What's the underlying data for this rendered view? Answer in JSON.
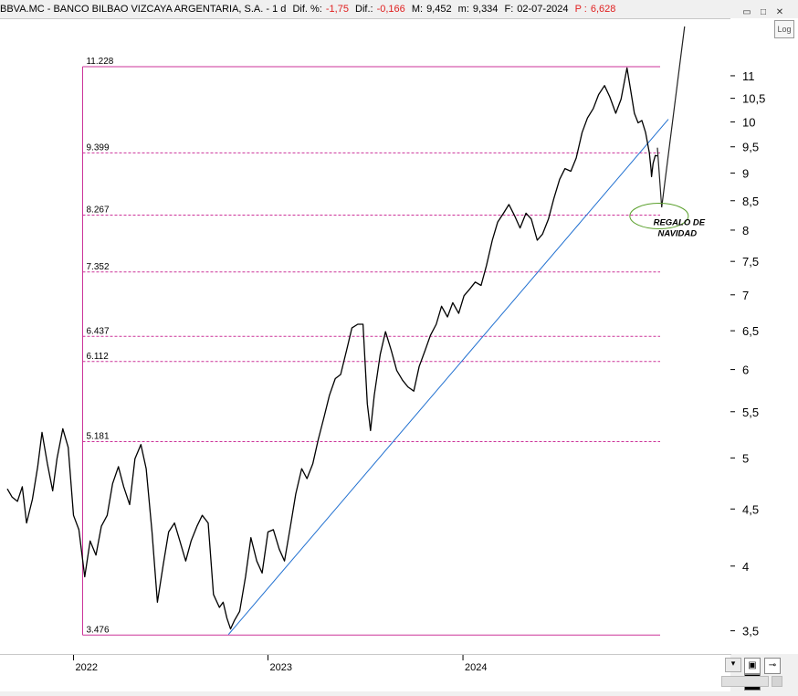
{
  "header": {
    "symbol": "BBVA.MC - BANCO BILBAO VIZCAYA ARGENTARIA, S.A. - 1 d",
    "dif_pct_label": "Dif. %:",
    "dif_pct_value": "-1,75",
    "dif_label": "Dif.:",
    "dif_value": "-0,166",
    "max_label": "M:",
    "max_value": "9,452",
    "min_label": "m:",
    "min_value": "9,334",
    "date_label": "F:",
    "date_value": "02-07-2024",
    "price_label": "P :",
    "price_value": "6,628"
  },
  "window_buttons": [
    "▭",
    "□",
    "✕"
  ],
  "log_button": "Log",
  "colors": {
    "price": "#000000",
    "fib": "#cc3399",
    "trendline": "#1f6fd0",
    "ellipse": "#5aa02c",
    "negative": "#e02020"
  },
  "chart_data": {
    "type": "line",
    "scale": "log",
    "ylim": [
      3.4,
      12.2
    ],
    "y_ticks": [
      "3,5",
      "4",
      "4,5",
      "5",
      "5,5",
      "6",
      "6,5",
      "7",
      "7,5",
      "8",
      "8,5",
      "9",
      "9,5",
      "10",
      "10,5",
      "11"
    ],
    "y_tick_values": [
      3.5,
      4,
      4.5,
      5,
      5.5,
      6,
      6.5,
      7,
      7.5,
      8,
      8.5,
      9,
      9.5,
      10,
      10.5,
      11
    ],
    "x_ticks": [
      "2022",
      "2023",
      "2024"
    ],
    "x_tick_dates": [
      "2022-01-03",
      "2023-01-02",
      "2024-01-02"
    ],
    "xlim": [
      "2021-09-01",
      "2024-12-31"
    ],
    "fib_levels": [
      {
        "label": "11.228",
        "value": 11.228
      },
      {
        "label": "9.399",
        "value": 9.399
      },
      {
        "label": "8.267",
        "value": 8.267
      },
      {
        "label": "7.352",
        "value": 7.352
      },
      {
        "label": "6.437",
        "value": 6.437
      },
      {
        "label": "6.112",
        "value": 6.112
      },
      {
        "label": "5.181",
        "value": 5.181
      },
      {
        "label": "3.476",
        "value": 3.476
      }
    ],
    "series": [
      {
        "values": [
          [
            "2021-09-01",
            4.7
          ],
          [
            "2021-09-10",
            4.62
          ],
          [
            "2021-09-20",
            4.58
          ],
          [
            "2021-09-29",
            4.72
          ],
          [
            "2021-10-07",
            4.38
          ],
          [
            "2021-10-18",
            4.6
          ],
          [
            "2021-10-28",
            4.92
          ],
          [
            "2021-11-05",
            5.28
          ],
          [
            "2021-11-15",
            4.95
          ],
          [
            "2021-11-25",
            4.68
          ],
          [
            "2021-12-03",
            5.0
          ],
          [
            "2021-12-14",
            5.32
          ],
          [
            "2021-12-24",
            5.12
          ],
          [
            "2022-01-03",
            4.45
          ],
          [
            "2022-01-13",
            4.32
          ],
          [
            "2022-01-24",
            3.92
          ],
          [
            "2022-02-03",
            4.22
          ],
          [
            "2022-02-14",
            4.1
          ],
          [
            "2022-02-24",
            4.35
          ],
          [
            "2022-03-07",
            4.45
          ],
          [
            "2022-03-17",
            4.75
          ],
          [
            "2022-03-28",
            4.92
          ],
          [
            "2022-04-07",
            4.72
          ],
          [
            "2022-04-18",
            4.55
          ],
          [
            "2022-04-28",
            5.0
          ],
          [
            "2022-05-09",
            5.15
          ],
          [
            "2022-05-19",
            4.9
          ],
          [
            "2022-05-30",
            4.3
          ],
          [
            "2022-06-09",
            3.72
          ],
          [
            "2022-06-20",
            4.02
          ],
          [
            "2022-06-30",
            4.3
          ],
          [
            "2022-07-11",
            4.38
          ],
          [
            "2022-07-21",
            4.22
          ],
          [
            "2022-08-01",
            4.05
          ],
          [
            "2022-08-11",
            4.22
          ],
          [
            "2022-08-22",
            4.35
          ],
          [
            "2022-09-01",
            4.45
          ],
          [
            "2022-09-12",
            4.38
          ],
          [
            "2022-09-22",
            3.78
          ],
          [
            "2022-10-03",
            3.68
          ],
          [
            "2022-10-10",
            3.72
          ],
          [
            "2022-10-17",
            3.6
          ],
          [
            "2022-10-24",
            3.52
          ],
          [
            "2022-10-31",
            3.58
          ],
          [
            "2022-11-10",
            3.65
          ],
          [
            "2022-11-21",
            3.92
          ],
          [
            "2022-12-01",
            4.25
          ],
          [
            "2022-12-12",
            4.05
          ],
          [
            "2022-12-22",
            3.95
          ],
          [
            "2023-01-02",
            4.3
          ],
          [
            "2023-01-12",
            4.32
          ],
          [
            "2023-01-23",
            4.15
          ],
          [
            "2023-02-02",
            4.05
          ],
          [
            "2023-02-13",
            4.35
          ],
          [
            "2023-02-23",
            4.65
          ],
          [
            "2023-03-06",
            4.9
          ],
          [
            "2023-03-16",
            4.8
          ],
          [
            "2023-03-27",
            4.95
          ],
          [
            "2023-04-06",
            5.2
          ],
          [
            "2023-04-17",
            5.45
          ],
          [
            "2023-04-27",
            5.7
          ],
          [
            "2023-05-08",
            5.9
          ],
          [
            "2023-05-18",
            5.95
          ],
          [
            "2023-05-29",
            6.25
          ],
          [
            "2023-06-08",
            6.55
          ],
          [
            "2023-06-19",
            6.6
          ],
          [
            "2023-06-29",
            6.6
          ],
          [
            "2023-07-07",
            5.6
          ],
          [
            "2023-07-13",
            5.3
          ],
          [
            "2023-07-20",
            5.7
          ],
          [
            "2023-07-31",
            6.2
          ],
          [
            "2023-08-10",
            6.5
          ],
          [
            "2023-08-21",
            6.25
          ],
          [
            "2023-08-31",
            6.0
          ],
          [
            "2023-09-11",
            5.88
          ],
          [
            "2023-09-21",
            5.8
          ],
          [
            "2023-10-02",
            5.75
          ],
          [
            "2023-10-12",
            6.05
          ],
          [
            "2023-10-23",
            6.25
          ],
          [
            "2023-11-02",
            6.45
          ],
          [
            "2023-11-13",
            6.6
          ],
          [
            "2023-11-23",
            6.85
          ],
          [
            "2023-12-04",
            6.7
          ],
          [
            "2023-12-14",
            6.9
          ],
          [
            "2023-12-25",
            6.75
          ],
          [
            "2024-01-04",
            7.0
          ],
          [
            "2024-01-15",
            7.1
          ],
          [
            "2024-01-25",
            7.2
          ],
          [
            "2024-02-05",
            7.15
          ],
          [
            "2024-02-15",
            7.45
          ],
          [
            "2024-02-26",
            7.85
          ],
          [
            "2024-03-07",
            8.15
          ],
          [
            "2024-03-18",
            8.3
          ],
          [
            "2024-03-28",
            8.45
          ],
          [
            "2024-04-08",
            8.25
          ],
          [
            "2024-04-18",
            8.05
          ],
          [
            "2024-04-29",
            8.3
          ],
          [
            "2024-05-09",
            8.2
          ],
          [
            "2024-05-20",
            7.85
          ],
          [
            "2024-05-30",
            7.95
          ],
          [
            "2024-06-10",
            8.2
          ],
          [
            "2024-06-20",
            8.55
          ],
          [
            "2024-07-01",
            8.9
          ],
          [
            "2024-07-11",
            9.1
          ],
          [
            "2024-07-22",
            9.05
          ],
          [
            "2024-08-01",
            9.3
          ],
          [
            "2024-08-12",
            9.8
          ],
          [
            "2024-08-22",
            10.1
          ],
          [
            "2024-09-02",
            10.3
          ],
          [
            "2024-09-12",
            10.6
          ],
          [
            "2024-09-23",
            10.8
          ],
          [
            "2024-10-03",
            10.55
          ],
          [
            "2024-10-14",
            10.2
          ],
          [
            "2024-10-24",
            10.5
          ],
          [
            "2024-11-04",
            11.2
          ],
          [
            "2024-11-11",
            10.7
          ],
          [
            "2024-11-18",
            10.2
          ],
          [
            "2024-11-25",
            10.0
          ],
          [
            "2024-12-02",
            10.05
          ],
          [
            "2024-12-09",
            9.8
          ],
          [
            "2024-12-16",
            9.4
          ],
          [
            "2024-12-19",
            9.1
          ],
          [
            "2024-12-20",
            8.95
          ],
          [
            "2024-12-23",
            9.2
          ],
          [
            "2024-12-27",
            9.35
          ],
          [
            "2024-12-31",
            9.34
          ]
        ]
      }
    ],
    "trendline": [
      [
        "2022-10-20",
        3.48
      ],
      [
        "2024-12-31",
        10.0
      ]
    ],
    "projection": [
      [
        "2024-12-31",
        9.5
      ],
      [
        "2025-01-08",
        8.4
      ],
      [
        "2025-02-20",
        12.2
      ]
    ],
    "annotation": {
      "text_line1": "REGALO DE",
      "text_line2": "NAVIDAD",
      "x": "2025-01-10",
      "y": 8.22
    }
  }
}
